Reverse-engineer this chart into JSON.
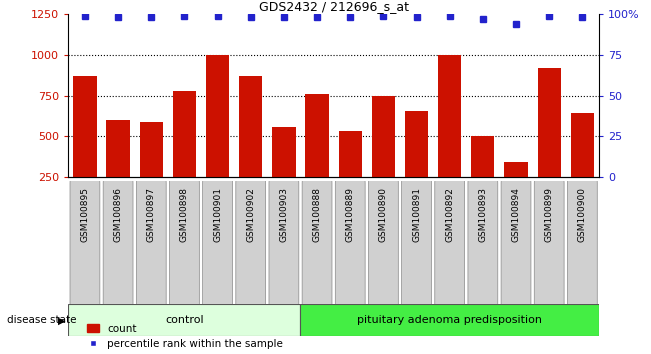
{
  "title": "GDS2432 / 212696_s_at",
  "samples": [
    "GSM100895",
    "GSM100896",
    "GSM100897",
    "GSM100898",
    "GSM100901",
    "GSM100902",
    "GSM100903",
    "GSM100888",
    "GSM100889",
    "GSM100890",
    "GSM100891",
    "GSM100892",
    "GSM100893",
    "GSM100894",
    "GSM100899",
    "GSM100900"
  ],
  "counts": [
    870,
    600,
    585,
    780,
    1000,
    870,
    555,
    760,
    530,
    750,
    655,
    1000,
    500,
    340,
    920,
    645
  ],
  "percentiles": [
    99,
    98,
    98,
    99,
    99,
    98,
    98,
    98,
    98,
    99,
    98,
    99,
    97,
    94,
    99,
    98
  ],
  "n_control": 7,
  "n_disease": 9,
  "ylim_left": [
    250,
    1250
  ],
  "ylim_right": [
    0,
    100
  ],
  "yticks_left": [
    250,
    500,
    750,
    1000,
    1250
  ],
  "yticks_right": [
    0,
    25,
    50,
    75,
    100
  ],
  "bar_color": "#CC1100",
  "dot_color": "#2222CC",
  "control_bg": "#DDFFDD",
  "disease_bg": "#44EE44",
  "label_bg": "#D0D0D0",
  "label_count": "count",
  "label_percentile": "percentile rank within the sample",
  "disease_state_label": "disease state",
  "control_label": "control",
  "disease_label": "pituitary adenoma predisposition"
}
